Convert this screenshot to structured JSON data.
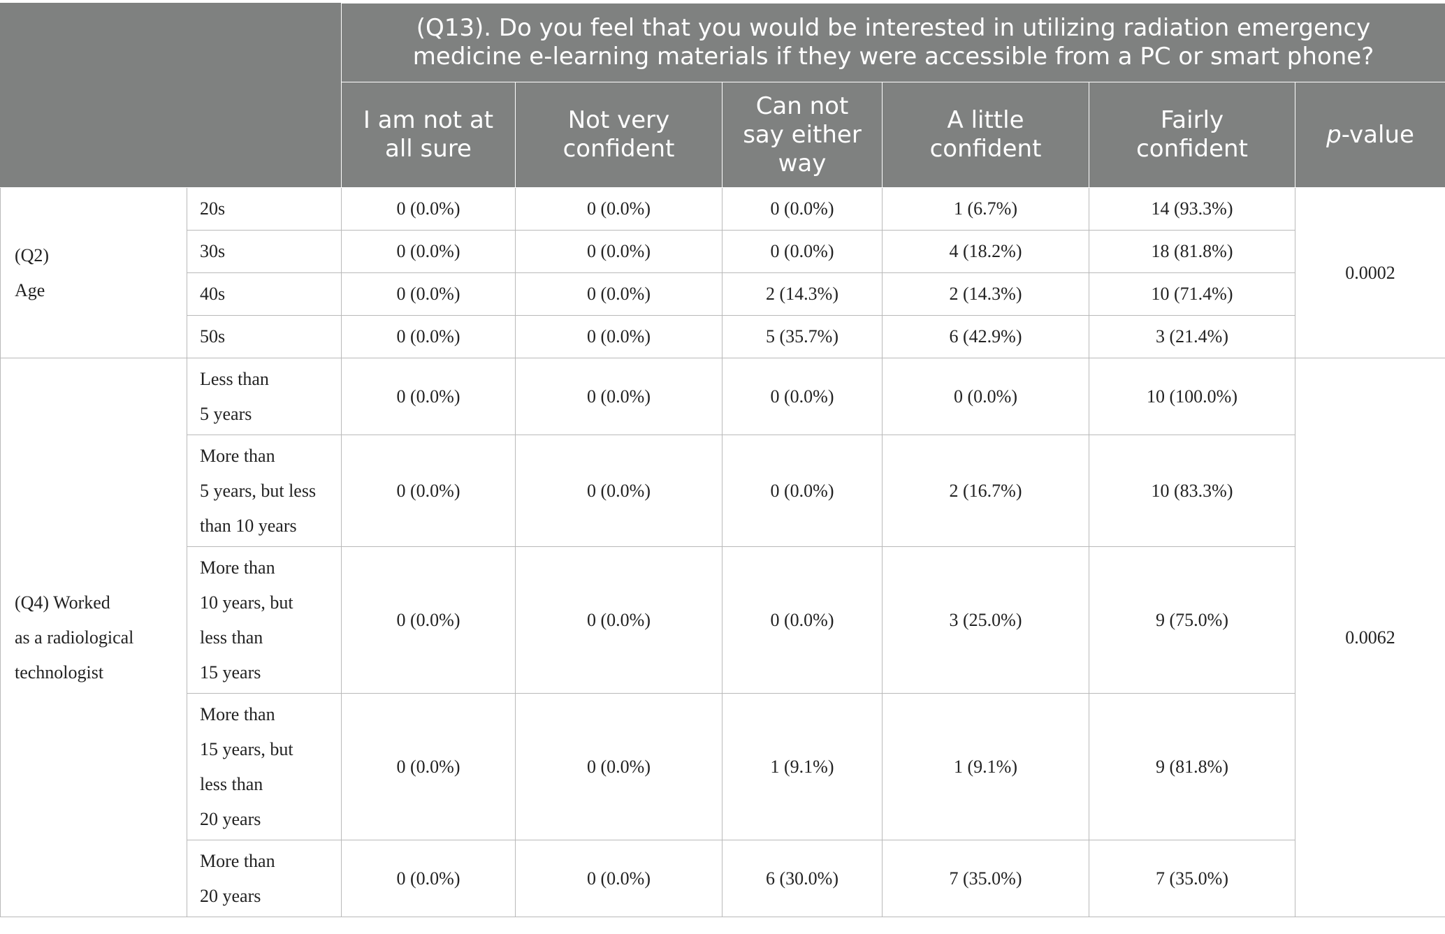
{
  "header": {
    "question": "(Q13). Do you feel that you would be interested in utilizing radiation emergency medicine e-learning materials if they were accessible from a PC or smart phone?",
    "question_lines": [
      "(Q13). Do you feel that you would be interested in utilizing radiation emergency",
      "medicine e-learning materials if they were accessible from a PC or smart phone?"
    ],
    "options": [
      {
        "lines": [
          "I am not at",
          "all sure"
        ]
      },
      {
        "lines": [
          "Not very",
          "confident"
        ]
      },
      {
        "lines": [
          "Can not",
          "say either",
          "way"
        ]
      },
      {
        "lines": [
          "A little",
          "confident"
        ]
      },
      {
        "lines": [
          "Fairly",
          "confident"
        ]
      }
    ],
    "pvalue_italic": "p",
    "pvalue_rest": "-value"
  },
  "groups": [
    {
      "label_lines": [
        "(Q2)",
        "Age"
      ],
      "p_value": "0.0002",
      "rows": [
        {
          "label_lines": [
            "20s"
          ],
          "values": [
            "0 (0.0%)",
            "0 (0.0%)",
            "0 (0.0%)",
            "1 (6.7%)",
            "14 (93.3%)"
          ]
        },
        {
          "label_lines": [
            "30s"
          ],
          "values": [
            "0 (0.0%)",
            "0 (0.0%)",
            "0 (0.0%)",
            "4 (18.2%)",
            "18 (81.8%)"
          ]
        },
        {
          "label_lines": [
            "40s"
          ],
          "values": [
            "0 (0.0%)",
            "0 (0.0%)",
            "2 (14.3%)",
            "2 (14.3%)",
            "10 (71.4%)"
          ]
        },
        {
          "label_lines": [
            "50s"
          ],
          "values": [
            "0 (0.0%)",
            "0 (0.0%)",
            "5 (35.7%)",
            "6 (42.9%)",
            "3 (21.4%)"
          ]
        }
      ]
    },
    {
      "label_lines": [
        "(Q4) Worked",
        "as a radiological",
        "technologist"
      ],
      "p_value": "0.0062",
      "rows": [
        {
          "label_lines": [
            "Less than",
            "5 years"
          ],
          "values": [
            "0 (0.0%)",
            "0 (0.0%)",
            "0 (0.0%)",
            "0 (0.0%)",
            "10 (100.0%)"
          ]
        },
        {
          "label_lines": [
            "More than",
            "5 years, but less",
            "than 10 years"
          ],
          "values": [
            "0 (0.0%)",
            "0 (0.0%)",
            "0 (0.0%)",
            "2 (16.7%)",
            "10 (83.3%)"
          ]
        },
        {
          "label_lines": [
            "More than",
            "10 years, but",
            "less than",
            "15 years"
          ],
          "values": [
            "0 (0.0%)",
            "0 (0.0%)",
            "0 (0.0%)",
            "3 (25.0%)",
            "9 (75.0%)"
          ]
        },
        {
          "label_lines": [
            "More than",
            "15 years, but",
            "less than",
            "20 years"
          ],
          "values": [
            "0 (0.0%)",
            "0 (0.0%)",
            "1 (9.1%)",
            "1 (9.1%)",
            "9 (81.8%)"
          ]
        },
        {
          "label_lines": [
            "More than",
            "20 years"
          ],
          "values": [
            "0 (0.0%)",
            "0 (0.0%)",
            "6 (30.0%)",
            "7 (35.0%)",
            "7 (35.0%)"
          ]
        }
      ]
    }
  ]
}
